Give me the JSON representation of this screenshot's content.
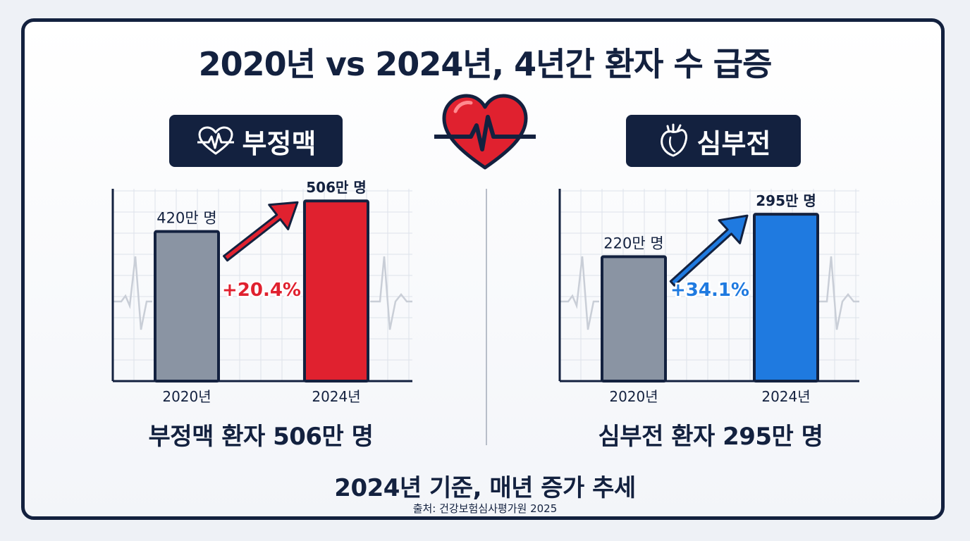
{
  "title": "2020년 vs 2024년, 4년간 환자 수 급증",
  "icons": {
    "header": "heart-pulse-icon",
    "left_badge": "heartbeat-icon",
    "right_badge": "anatomical-heart-icon"
  },
  "colors": {
    "navy": "#13213f",
    "bar_2020": "#8a94a3",
    "arrhythmia_accent": "#e0212f",
    "heart_failure_accent": "#1f7ae0",
    "grid": "#dde2ea"
  },
  "chart_data": [
    {
      "type": "bar",
      "title": "부정맥",
      "categories": [
        "2020년",
        "2024년"
      ],
      "values": [
        420,
        506
      ],
      "unit": "만 명",
      "data_labels": [
        "420만 명",
        "506만 명"
      ],
      "change_label": "+20.4%",
      "caption": "부정맥 환자 506만 명",
      "ylim": [
        0,
        540
      ],
      "colors": [
        "#8a94a3",
        "#e0212f"
      ],
      "accent": "#e0212f",
      "grid": true
    },
    {
      "type": "bar",
      "title": "심부전",
      "categories": [
        "2020년",
        "2024년"
      ],
      "values": [
        220,
        295
      ],
      "unit": "만 명",
      "data_labels": [
        "220만 명",
        "295만 명"
      ],
      "change_label": "+34.1%",
      "caption": "심부전 환자 295만 명",
      "ylim": [
        0,
        340
      ],
      "colors": [
        "#8a94a3",
        "#1f7ae0"
      ],
      "accent": "#1f7ae0",
      "grid": true
    }
  ],
  "footer": {
    "summary": "2024년 기준, 매년 증가 추세",
    "source": "출처: 건강보험심사평가원 2025"
  }
}
